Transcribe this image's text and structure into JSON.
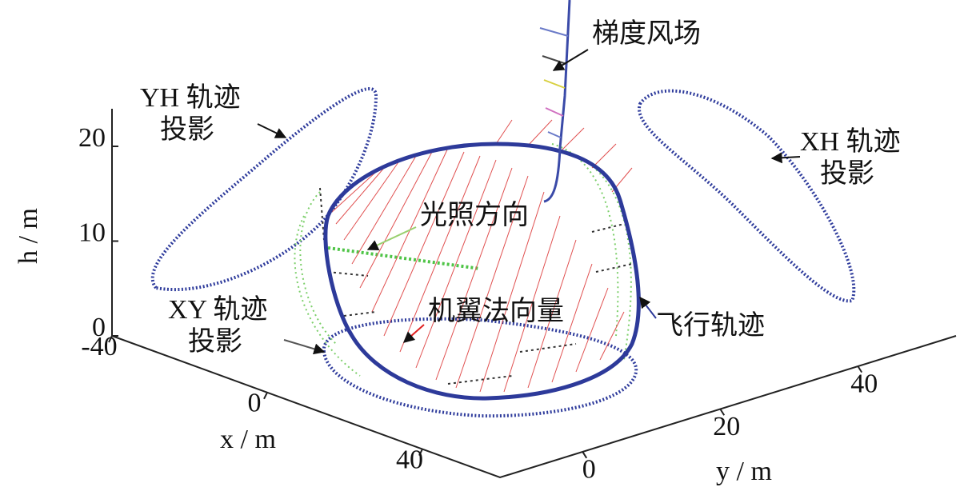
{
  "chart_data": {
    "type": "line3d",
    "xlabel": "x / m",
    "ylabel": "y / m",
    "zlabel": "h / m",
    "xlim": [
      -40,
      60
    ],
    "ylim": [
      -12,
      54
    ],
    "zlim": [
      0,
      24
    ],
    "xticks": [
      -40,
      0,
      40
    ],
    "yticks": [
      0,
      20,
      40
    ],
    "zticks": [
      0,
      10,
      20
    ],
    "annotations": [
      {
        "lines": [
          "梯度风场"
        ]
      },
      {
        "lines": [
          "YH 轨迹",
          "投影"
        ]
      },
      {
        "lines": [
          "XH 轨迹",
          "投影"
        ]
      },
      {
        "lines": [
          "光照方向"
        ]
      },
      {
        "lines": [
          "机翼法向量"
        ]
      },
      {
        "lines": [
          "飞行轨迹"
        ]
      },
      {
        "lines": [
          "XY 轨迹",
          "投影"
        ]
      }
    ]
  }
}
